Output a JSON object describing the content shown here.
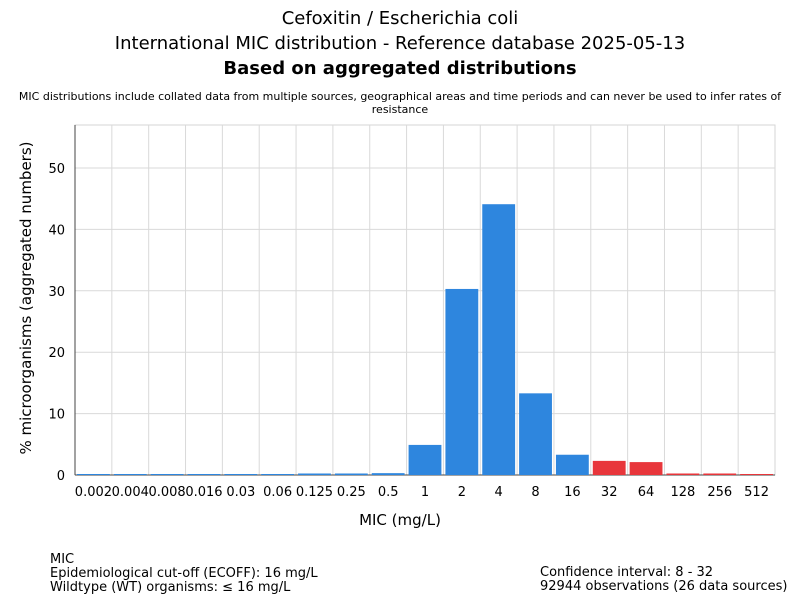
{
  "chart_data": {
    "type": "bar",
    "title_line1": "Cefoxitin / Escherichia coli",
    "title_line2": "International MIC distribution - Reference database 2025-05-13",
    "title_line3": "Based on aggregated distributions",
    "subtitle": "MIC distributions include collated data from multiple sources, geographical areas and time periods and can never be used to infer rates of resistance",
    "xlabel": "MIC (mg/L)",
    "ylabel": "% microorganisms (aggregated numbers)",
    "ylim": [
      0,
      57
    ],
    "yticks": [
      0,
      10,
      20,
      30,
      40,
      50
    ],
    "categories": [
      "0.002",
      "0.004",
      "0.008",
      "0.016",
      "0.03",
      "0.06",
      "0.125",
      "0.25",
      "0.5",
      "1",
      "2",
      "4",
      "8",
      "16",
      "32",
      "64",
      "128",
      "256",
      "512"
    ],
    "values": [
      0,
      0,
      0,
      0,
      0,
      0,
      0.1,
      0.1,
      0.3,
      4.9,
      30.3,
      44.1,
      13.3,
      3.3,
      2.3,
      2.1,
      0.2,
      0.1,
      0
    ],
    "colors": [
      "#2e86de",
      "#2e86de",
      "#2e86de",
      "#2e86de",
      "#2e86de",
      "#2e86de",
      "#2e86de",
      "#2e86de",
      "#2e86de",
      "#2e86de",
      "#2e86de",
      "#2e86de",
      "#2e86de",
      "#2e86de",
      "#e8363b",
      "#e8363b",
      "#e8363b",
      "#e8363b",
      "#e8363b"
    ],
    "grid": true
  },
  "footer": {
    "left_line1": "MIC",
    "left_line2": "Epidemiological cut-off (ECOFF): 16 mg/L",
    "left_line3": "Wildtype (WT) organisms: ≤ 16 mg/L",
    "right_line1": "Confidence interval: 8 - 32",
    "right_line2": "92944 observations (26 data sources)"
  }
}
